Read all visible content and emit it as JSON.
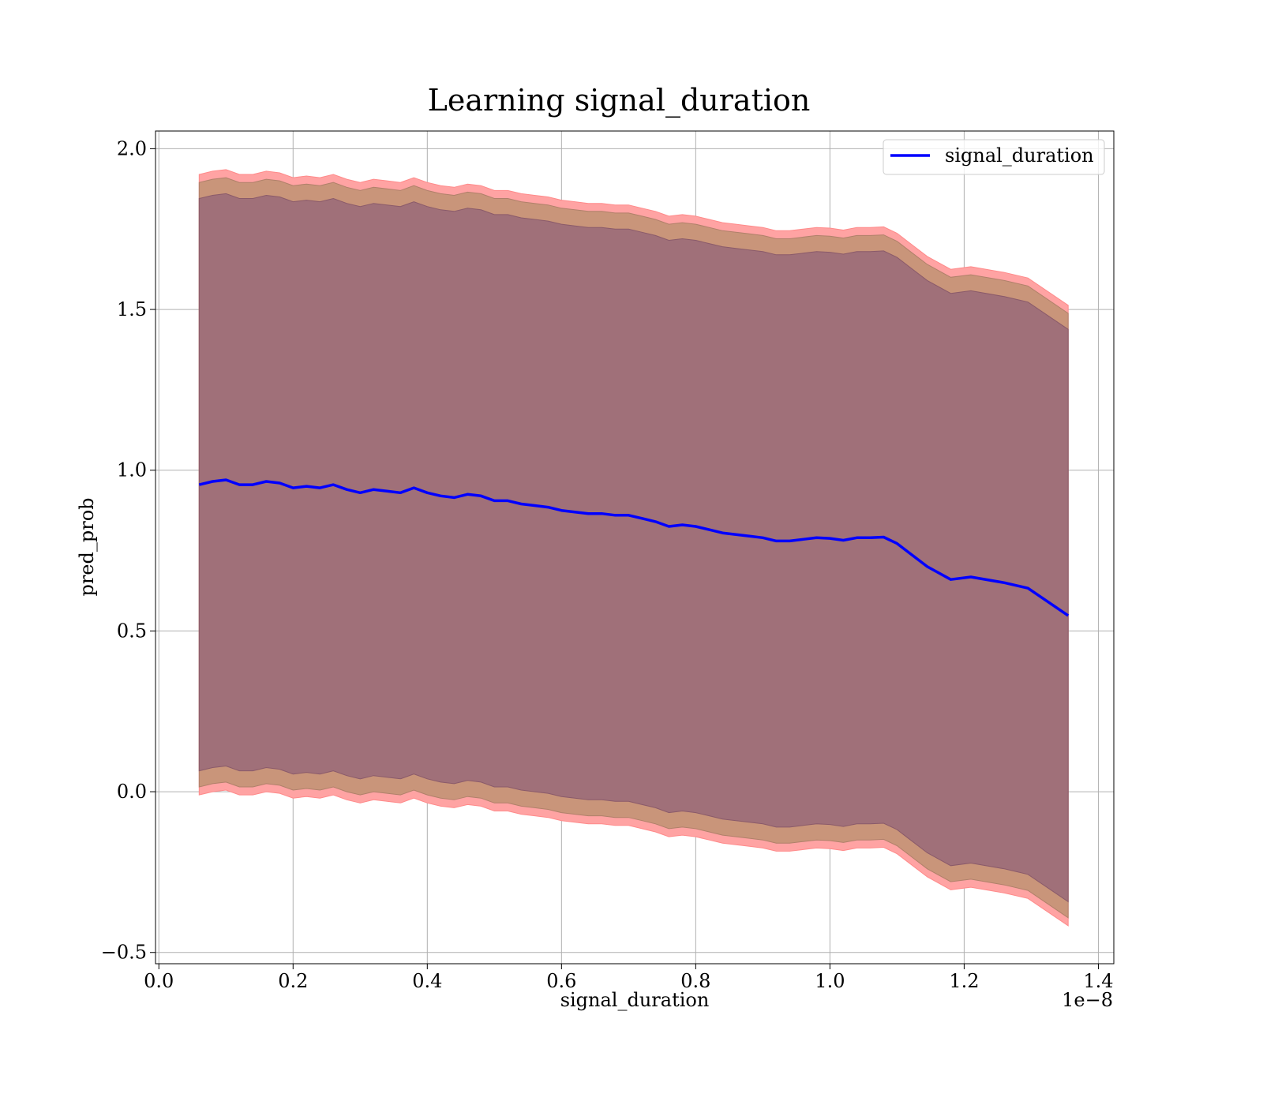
{
  "chart_data": {
    "type": "area",
    "title": "Learning signal_duration",
    "xlabel": "signal_duration",
    "ylabel": "pred_prob",
    "x_offset_label": "1e−8",
    "xlim": [
      -0.005,
      1.423
    ],
    "ylim": [
      -0.535,
      2.055
    ],
    "x_ticks": [
      0.0,
      0.2,
      0.4,
      0.6,
      0.8,
      1.0,
      1.2,
      1.4
    ],
    "x_tick_labels": [
      "0.0",
      "0.2",
      "0.4",
      "0.6",
      "0.8",
      "1.0",
      "1.2",
      "1.4"
    ],
    "y_ticks": [
      -0.5,
      0.0,
      0.5,
      1.0,
      1.5,
      2.0
    ],
    "y_tick_labels": [
      "−0.5",
      "0.0",
      "0.5",
      "1.0",
      "1.5",
      "2.0"
    ],
    "grid": true,
    "legend": {
      "position": "top-right",
      "entries": [
        "signal_duration"
      ]
    },
    "colors": {
      "line": "#0000ff",
      "outer_band": "#ffa3a3",
      "middle_band": "#c9957a",
      "inner_band": "#a07079"
    },
    "x": [
      0.06,
      0.08,
      0.1,
      0.12,
      0.14,
      0.16,
      0.18,
      0.2,
      0.22,
      0.24,
      0.26,
      0.28,
      0.3,
      0.32,
      0.34,
      0.36,
      0.38,
      0.4,
      0.42,
      0.44,
      0.46,
      0.48,
      0.5,
      0.52,
      0.54,
      0.56,
      0.58,
      0.6,
      0.62,
      0.64,
      0.66,
      0.68,
      0.7,
      0.72,
      0.74,
      0.76,
      0.78,
      0.8,
      0.82,
      0.84,
      0.86,
      0.88,
      0.9,
      0.92,
      0.94,
      0.96,
      0.98,
      1.0,
      1.02,
      1.04,
      1.06,
      1.08,
      1.1,
      1.12,
      1.145,
      1.18,
      1.21,
      1.26,
      1.295,
      1.355
    ],
    "series": [
      {
        "name": "signal_duration",
        "values": [
          0.955,
          0.965,
          0.97,
          0.955,
          0.955,
          0.965,
          0.96,
          0.945,
          0.95,
          0.945,
          0.955,
          0.94,
          0.93,
          0.94,
          0.935,
          0.93,
          0.945,
          0.93,
          0.92,
          0.915,
          0.925,
          0.92,
          0.905,
          0.905,
          0.895,
          0.89,
          0.885,
          0.875,
          0.87,
          0.865,
          0.865,
          0.86,
          0.86,
          0.85,
          0.84,
          0.825,
          0.83,
          0.825,
          0.815,
          0.805,
          0.8,
          0.795,
          0.79,
          0.78,
          0.78,
          0.785,
          0.79,
          0.788,
          0.782,
          0.79,
          0.79,
          0.792,
          0.772,
          0.74,
          0.7,
          0.66,
          0.668,
          0.65,
          0.633,
          0.548
        ]
      }
    ],
    "bands": {
      "outer": {
        "upper_offset": 0.965,
        "lower_offset": 0.965
      },
      "middle": {
        "upper_offset": 0.94,
        "lower_offset": 0.94
      },
      "inner": {
        "upper_offset": 0.89,
        "lower_offset": 0.89
      }
    }
  }
}
